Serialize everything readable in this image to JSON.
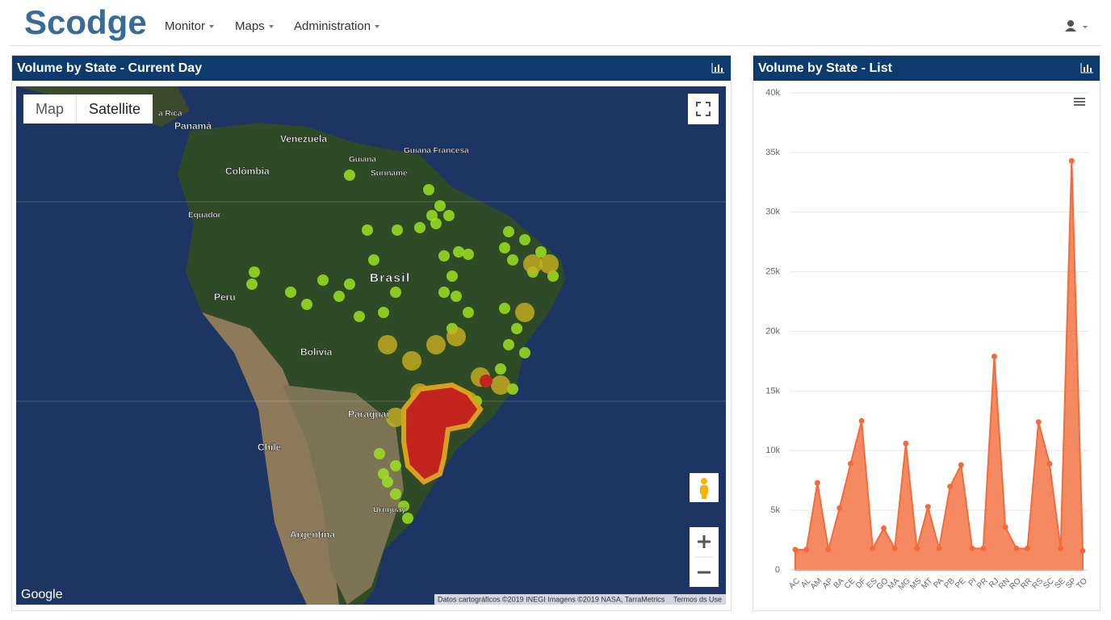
{
  "brand": "Scodge",
  "nav": [
    "Monitor",
    "Maps",
    "Administration"
  ],
  "map_panel": {
    "title": "Volume by State - Current Day",
    "map_types": [
      "Map",
      "Satellite"
    ],
    "labels": [
      "Panamá",
      "Venezuela",
      "Guiana",
      "Guiana Francesa",
      "Suriname",
      "Colômbia",
      "Equador",
      "Brasil",
      "Peru",
      "Bolivia",
      "Paraguai",
      "Chile",
      "Uruguay",
      "Argentina",
      "a Rica"
    ],
    "google": "Google",
    "attribution": "Datos cartográficos ©2019 INEGI Imagens ©2019 NASA, TarraMetrics",
    "terms": "Termos ds Use"
  },
  "chart_data": {
    "type": "area",
    "title": "Volume by State - List",
    "categories": [
      "AC",
      "AL",
      "AM",
      "AP",
      "BA",
      "CE",
      "DF",
      "ES",
      "GO",
      "MA",
      "MG",
      "MS",
      "MT",
      "PA",
      "PB",
      "PE",
      "PI",
      "PR",
      "RJ",
      "RN",
      "RO",
      "RR",
      "RS",
      "SC",
      "SE",
      "SP",
      "TO"
    ],
    "values": [
      1700,
      1700,
      7300,
      1700,
      5200,
      8900,
      12500,
      1800,
      3500,
      1800,
      10600,
      1800,
      5300,
      1800,
      7000,
      8800,
      1800,
      1800,
      17900,
      3600,
      1800,
      1800,
      12400,
      8900,
      1800,
      34300,
      1600
    ],
    "color": "#f26b3a",
    "ylim": [
      0,
      40000
    ],
    "yticks": [
      0,
      {
        "value": 5000,
        "label": "5k"
      },
      {
        "value": 10000,
        "label": "10k"
      },
      {
        "value": 15000,
        "label": "15k"
      },
      {
        "value": 20000,
        "label": "20k"
      },
      {
        "value": 25000,
        "label": "25k"
      },
      {
        "value": 30000,
        "label": "30k"
      },
      {
        "value": 35000,
        "label": "35k"
      },
      {
        "value": 40000,
        "label": "40k"
      }
    ],
    "grid": true
  }
}
